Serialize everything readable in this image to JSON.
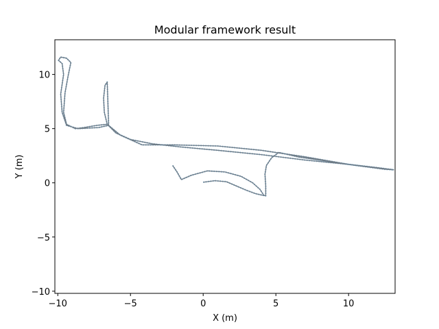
{
  "chart_data": {
    "type": "line",
    "title": "Modular framework result",
    "xlabel": "X (m)",
    "ylabel": "Y (m)",
    "xlim": [
      -10.2,
      13.2
    ],
    "ylim": [
      -10.2,
      13.2
    ],
    "grid": false,
    "legend": "none",
    "x_ticks": [
      -10,
      -5,
      0,
      5,
      10
    ],
    "x_tick_labels": [
      "−10",
      "−5",
      "0",
      "5",
      "10"
    ],
    "y_ticks": [
      -10,
      -5,
      0,
      5,
      10
    ],
    "y_tick_labels": [
      "−10",
      "−5",
      "0",
      "5",
      "10"
    ],
    "colors": {
      "trajectory": "#6e7b86",
      "estimate": "#1f77b4"
    },
    "series": [
      {
        "x": [
          0.0,
          0.8,
          1.6,
          2.3,
          3.0,
          3.6,
          4.1,
          4.3,
          4.3,
          4.25,
          4.35,
          4.7,
          5.2,
          6.5,
          8.5,
          10.5,
          12.5,
          13.1,
          12.0,
          10.0,
          7.0,
          4.0,
          1.0,
          -1.5,
          -3.5,
          -5.0,
          -6.0,
          -6.6,
          -6.8,
          -6.85,
          -6.75,
          -6.6,
          -6.5,
          -7.2,
          -8.6,
          -9.4,
          -9.7,
          -9.8,
          -9.6,
          -9.7,
          -9.95,
          -9.8,
          -9.4,
          -9.1,
          -9.3,
          -9.5,
          -9.6,
          -9.4,
          -8.8,
          -8.2,
          -7.3,
          -6.6,
          -5.7,
          -4.2,
          -2.0,
          1.0,
          4.0,
          7.0,
          10.0,
          12.4
        ],
        "y": [
          0.05,
          0.2,
          0.1,
          -0.3,
          -0.7,
          -1.0,
          -1.15,
          -1.2,
          -0.3,
          0.8,
          1.6,
          2.3,
          2.8,
          2.4,
          2.0,
          1.6,
          1.25,
          1.2,
          1.4,
          1.7,
          2.1,
          2.6,
          3.0,
          3.3,
          3.6,
          4.0,
          4.6,
          5.4,
          6.5,
          7.8,
          9.0,
          9.3,
          5.3,
          5.1,
          5.0,
          5.3,
          6.5,
          8.2,
          10.0,
          11.0,
          11.3,
          11.6,
          11.5,
          11.1,
          9.8,
          8.3,
          6.5,
          5.4,
          5.0,
          5.1,
          5.3,
          5.4,
          4.4,
          3.5,
          3.5,
          3.4,
          3.0,
          2.4,
          1.7,
          1.3
        ]
      },
      {
        "x": [
          -2.1,
          -1.8,
          -1.5,
          -0.8,
          0.3,
          1.5,
          2.6,
          3.4,
          3.9,
          4.2
        ],
        "y": [
          1.6,
          1.0,
          0.3,
          0.7,
          1.1,
          1.0,
          0.6,
          0.0,
          -0.6,
          -1.2
        ]
      }
    ]
  }
}
